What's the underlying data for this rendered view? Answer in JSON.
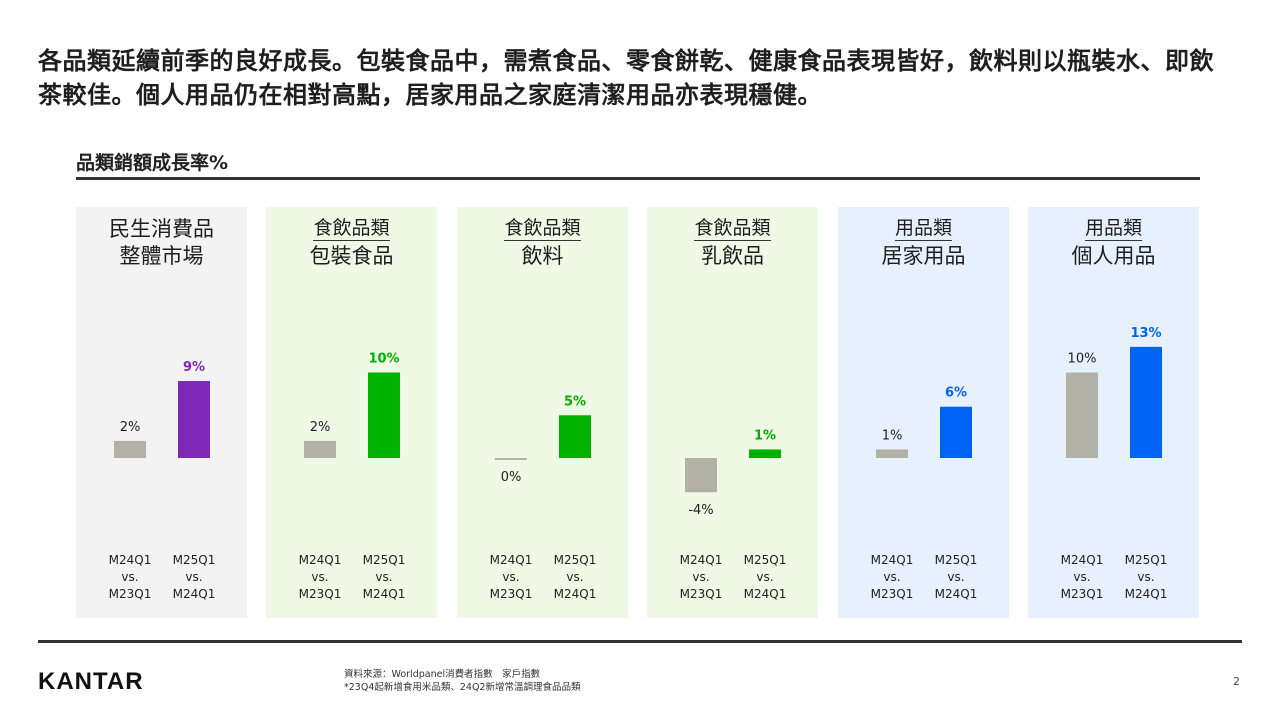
{
  "headline": "各品類延續前季的良好成長。包裝食品中，需煮食品、零食餅乾、健康食品表現皆好，飲料則以瓶裝水、即飲茶較佳。個人用品仍在相對高點，居家用品之家庭清潔用品亦表現穩健。",
  "chart_title": "品類銷額成長率%",
  "colors": {
    "grey_bar": "#b1b1a6",
    "purple": "#7f27b7",
    "green": "#00b200",
    "blue": "#0063f5",
    "panel_grey": "#f3f3f3",
    "panel_green": "#f0f8e6",
    "panel_blue": "#e6f1fd"
  },
  "chart_data": {
    "type": "bar",
    "categories": [
      "M24Q1 vs. M23Q1",
      "M25Q1 vs. M24Q1"
    ],
    "period_lines": [
      [
        "M24Q1",
        "vs.",
        "M23Q1"
      ],
      [
        "M25Q1",
        "vs.",
        "M24Q1"
      ]
    ],
    "panels": [
      {
        "group": "民生消費品",
        "name": "整體市場",
        "values": [
          2,
          9
        ],
        "labels": [
          "2%",
          "9%"
        ],
        "theme": "grey",
        "accent": "purple"
      },
      {
        "group": "食飲品類",
        "name": "包裝食品",
        "values": [
          2,
          10
        ],
        "labels": [
          "2%",
          "10%"
        ],
        "theme": "green",
        "accent": "green"
      },
      {
        "group": "食飲品類",
        "name": "飲料",
        "values": [
          0,
          5
        ],
        "labels": [
          "0%",
          "5%"
        ],
        "theme": "green",
        "accent": "green"
      },
      {
        "group": "食飲品類",
        "name": "乳飲品",
        "values": [
          -4,
          1
        ],
        "labels": [
          "-4%",
          "1%"
        ],
        "theme": "green",
        "accent": "green"
      },
      {
        "group": "用品類",
        "name": "居家用品",
        "values": [
          1,
          6
        ],
        "labels": [
          "1%",
          "6%"
        ],
        "theme": "blue",
        "accent": "blue"
      },
      {
        "group": "用品類",
        "name": "個人用品",
        "values": [
          10,
          13
        ],
        "labels": [
          "10%",
          "13%"
        ],
        "theme": "blue",
        "accent": "blue"
      }
    ]
  },
  "footer": {
    "logo": "KANTAR",
    "source_line1": "資料來源：Worldpanel消費者指數　家戶指數",
    "source_line2": "*23Q4起新增食用米品類、24Q2新增常溫調理食品品類",
    "page_number": "2"
  }
}
